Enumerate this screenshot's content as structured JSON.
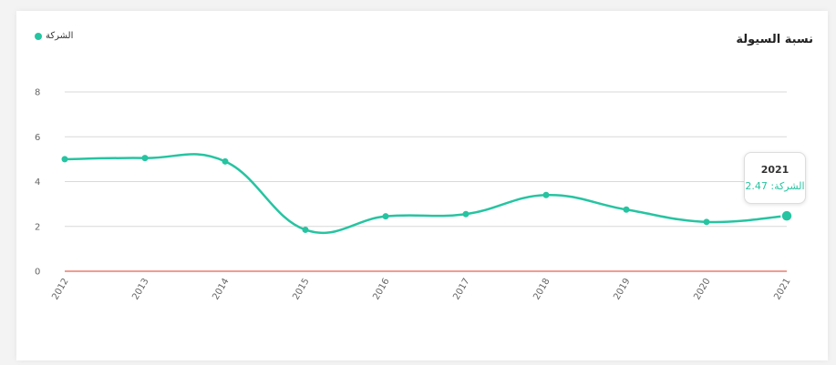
{
  "title": "نسبة السيولة",
  "legend": {
    "label": "الشركة"
  },
  "colors": {
    "series": "#26c4a1",
    "zero_line": "#e8604c",
    "grid": "#d9d9d9"
  },
  "tooltip": {
    "year": "2021",
    "label": "الشركة:",
    "value": "2.47"
  },
  "chart_data": {
    "type": "line",
    "categories": [
      "2012",
      "2013",
      "2014",
      "2015",
      "2016",
      "2017",
      "2018",
      "2019",
      "2020",
      "2021"
    ],
    "series": [
      {
        "name": "الشركة",
        "values": [
          5.0,
          5.05,
          4.9,
          1.85,
          2.45,
          2.55,
          3.4,
          2.75,
          2.2,
          2.47
        ]
      }
    ],
    "yticks": [
      "0",
      "2",
      "4",
      "6",
      "8"
    ],
    "ylim": [
      0,
      8
    ],
    "grid": true,
    "legend_position": "top-left"
  }
}
